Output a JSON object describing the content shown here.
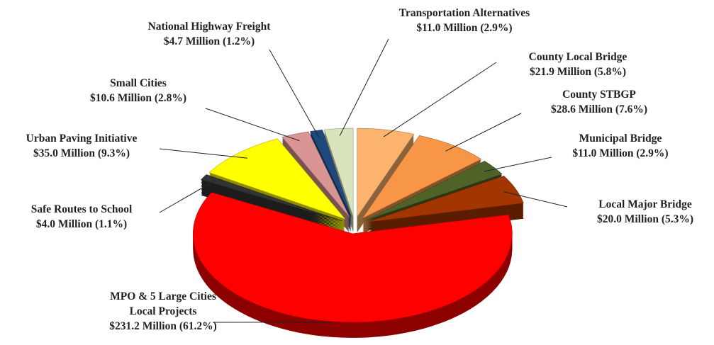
{
  "chart_data": {
    "type": "pie",
    "categories": [
      "County Local Bridge",
      "County STBGP",
      "Municipal Bridge",
      "Local Major Bridge",
      "MPO & 5 Large Cities Local Projects",
      "Safe Routes to School",
      "Urban Paving Initiative",
      "Small Cities",
      "National Highway Freight",
      "Transportation Alternatives"
    ],
    "values": [
      21.9,
      28.6,
      11.0,
      20.0,
      231.2,
      4.0,
      35.0,
      10.6,
      4.7,
      11.0
    ],
    "value_labels": [
      "$21.9 Million (5.8%)",
      "$28.6 Million (7.6%)",
      "$11.0 Million (2.9%)",
      "$20.0 Million (5.3%)",
      "$231.2 Million (61.2%)",
      "$4.0 Million (1.1%)",
      "$35.0 Million (9.3%)",
      "$10.6 Million (2.8%)",
      "$4.7 Million (1.2%)",
      "$11.0 Million (2.9%)"
    ],
    "colors": [
      "#fbb36d",
      "#f79646",
      "#4f6228",
      "#a33500",
      "#ff0000",
      "#333333",
      "#ffff00",
      "#d99594",
      "#1f497d",
      "#d7e4bd"
    ]
  }
}
